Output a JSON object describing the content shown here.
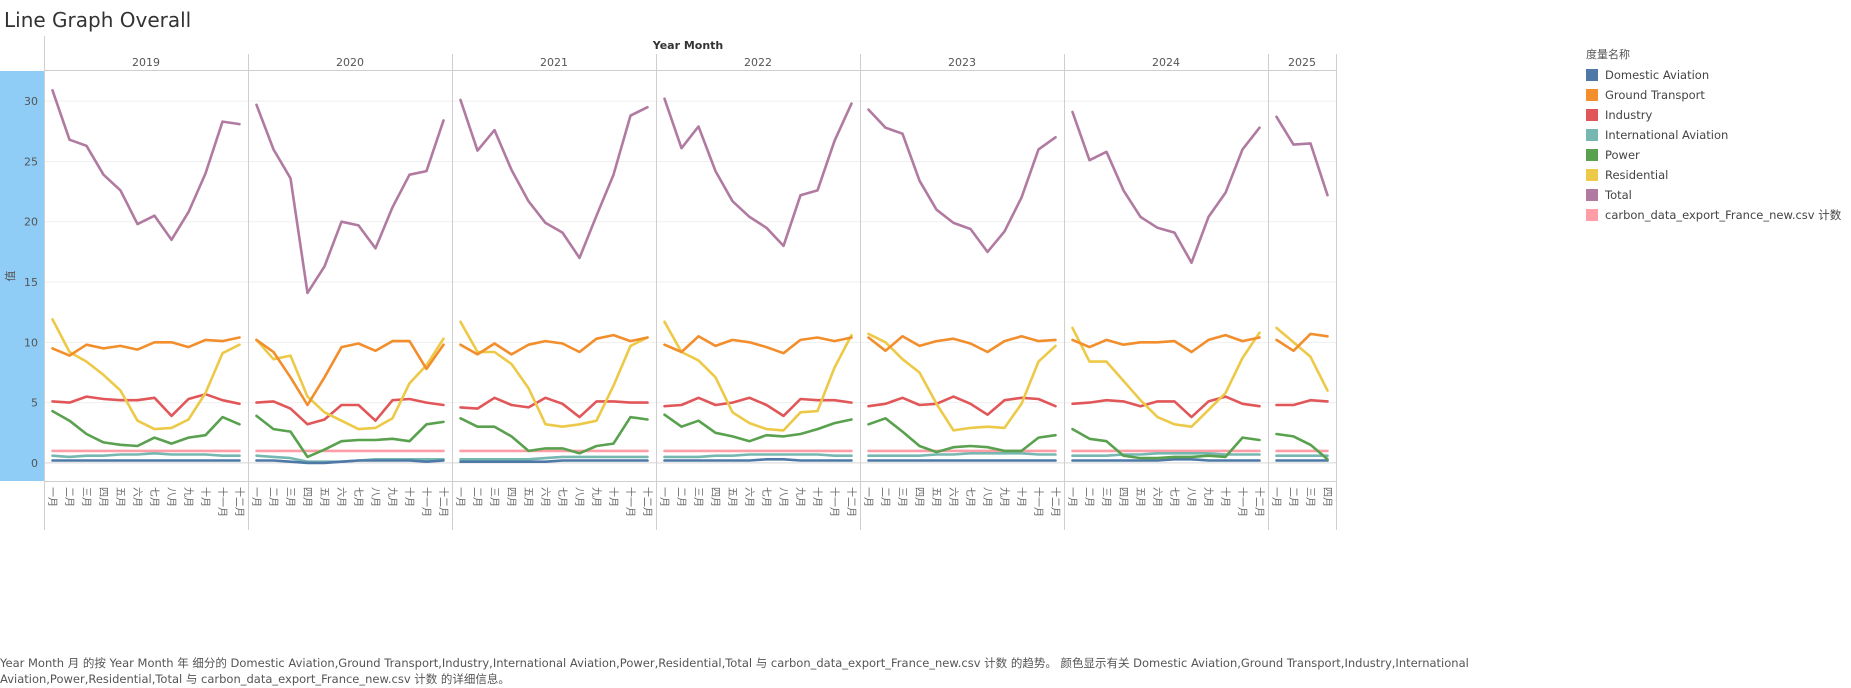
{
  "page": {
    "title": "Line Graph Overall",
    "caption": "Year Month 月 的按 Year Month 年 细分的 Domestic Aviation,Ground Transport,Industry,International Aviation,Power,Residential,Total 与 carbon_data_export_France_new.csv 计数 的趋势。 颜色显示有关 Domestic Aviation,Ground Transport,Industry,International Aviation,Power,Residential,Total 与 carbon_data_export_France_new.csv 计数 的详细信息。"
  },
  "legend": {
    "title": "度量名称",
    "items": [
      {
        "label": "Domestic Aviation",
        "color": "#4e79a7"
      },
      {
        "label": "Ground Transport",
        "color": "#f28e2b"
      },
      {
        "label": "Industry",
        "color": "#e15759"
      },
      {
        "label": "International Aviation",
        "color": "#76b7b2"
      },
      {
        "label": "Power",
        "color": "#59a14f"
      },
      {
        "label": "Residential",
        "color": "#edc948"
      },
      {
        "label": "Total",
        "color": "#b07aa1"
      },
      {
        "label": "carbon_data_export_France_new.csv 计数",
        "color": "#ff9da7"
      }
    ]
  },
  "chart_data": {
    "type": "line",
    "title": "Line Graph Overall",
    "xlabel": "Year Month",
    "ylabel": "值",
    "ylim": [
      -1.5,
      32.5
    ],
    "yticks": [
      0,
      5,
      10,
      15,
      20,
      25,
      30
    ],
    "grid": true,
    "legend_position": "right",
    "month_labels": [
      "一月",
      "二月",
      "三月",
      "四月",
      "五月",
      "六月",
      "七月",
      "八月",
      "九月",
      "十月",
      "十一月",
      "十二月"
    ],
    "panels": [
      {
        "year": "2019",
        "months": 12,
        "series": {
          "Domestic Aviation": [
            0.2,
            0.2,
            0.2,
            0.2,
            0.2,
            0.2,
            0.2,
            0.2,
            0.2,
            0.2,
            0.2,
            0.2
          ],
          "Ground Transport": [
            9.5,
            8.9,
            9.8,
            9.5,
            9.7,
            9.4,
            10.0,
            10.0,
            9.6,
            10.2,
            10.1,
            10.4
          ],
          "Industry": [
            5.1,
            5.0,
            5.5,
            5.3,
            5.2,
            5.2,
            5.4,
            3.9,
            5.3,
            5.7,
            5.2,
            4.9
          ],
          "International Aviation": [
            0.6,
            0.5,
            0.6,
            0.6,
            0.7,
            0.7,
            0.8,
            0.7,
            0.7,
            0.7,
            0.6,
            0.6
          ],
          "Power": [
            4.3,
            3.5,
            2.4,
            1.7,
            1.5,
            1.4,
            2.1,
            1.6,
            2.1,
            2.3,
            3.8,
            3.2
          ],
          "Residential": [
            11.9,
            9.2,
            8.4,
            7.3,
            6.0,
            3.5,
            2.8,
            2.9,
            3.6,
            5.8,
            9.1,
            9.8
          ],
          "Total": [
            30.9,
            26.8,
            26.3,
            23.9,
            22.6,
            19.8,
            20.5,
            18.5,
            20.8,
            24.0,
            28.3,
            28.1
          ],
          "carbon_data_export_France_new.csv 计数": [
            1,
            1,
            1,
            1,
            1,
            1,
            1,
            1,
            1,
            1,
            1,
            1
          ]
        }
      },
      {
        "year": "2020",
        "months": 12,
        "series": {
          "Domestic Aviation": [
            0.2,
            0.2,
            0.1,
            0.0,
            0.0,
            0.1,
            0.2,
            0.2,
            0.2,
            0.2,
            0.1,
            0.2
          ],
          "Ground Transport": [
            10.2,
            9.2,
            7.1,
            4.8,
            7.1,
            9.6,
            9.9,
            9.3,
            10.1,
            10.1,
            7.8,
            9.8
          ],
          "Industry": [
            5.0,
            5.1,
            4.5,
            3.2,
            3.6,
            4.8,
            4.8,
            3.5,
            5.2,
            5.3,
            5.0,
            4.8
          ],
          "International Aviation": [
            0.6,
            0.5,
            0.4,
            0.1,
            0.1,
            0.1,
            0.2,
            0.3,
            0.3,
            0.3,
            0.3,
            0.3
          ],
          "Power": [
            3.9,
            2.8,
            2.6,
            0.5,
            1.1,
            1.8,
            1.9,
            1.9,
            2.0,
            1.8,
            3.2,
            3.4
          ],
          "Residential": [
            10.2,
            8.6,
            8.9,
            5.5,
            4.2,
            3.5,
            2.8,
            2.9,
            3.7,
            6.6,
            8.1,
            10.3
          ],
          "Total": [
            29.7,
            26.0,
            23.6,
            14.1,
            16.3,
            20.0,
            19.7,
            17.8,
            21.2,
            23.9,
            24.2,
            28.4
          ],
          "carbon_data_export_France_new.csv 计数": [
            1,
            1,
            1,
            1,
            1,
            1,
            1,
            1,
            1,
            1,
            1,
            1
          ]
        }
      },
      {
        "year": "2021",
        "months": 12,
        "series": {
          "Domestic Aviation": [
            0.1,
            0.1,
            0.1,
            0.1,
            0.1,
            0.1,
            0.2,
            0.2,
            0.2,
            0.2,
            0.2,
            0.2
          ],
          "Ground Transport": [
            9.8,
            9.0,
            9.9,
            9.0,
            9.8,
            10.1,
            9.9,
            9.2,
            10.3,
            10.6,
            10.1,
            10.4
          ],
          "Industry": [
            4.6,
            4.5,
            5.4,
            4.8,
            4.6,
            5.4,
            4.9,
            3.8,
            5.1,
            5.1,
            5.0,
            5.0
          ],
          "International Aviation": [
            0.3,
            0.3,
            0.3,
            0.3,
            0.3,
            0.4,
            0.5,
            0.5,
            0.5,
            0.5,
            0.5,
            0.5
          ],
          "Power": [
            3.7,
            3.0,
            3.0,
            2.2,
            1.0,
            1.2,
            1.2,
            0.8,
            1.4,
            1.6,
            3.8,
            3.6
          ],
          "Residential": [
            11.7,
            9.2,
            9.2,
            8.2,
            6.2,
            3.2,
            3.0,
            3.2,
            3.5,
            6.4,
            9.7,
            10.4
          ],
          "Total": [
            30.1,
            25.9,
            27.6,
            24.3,
            21.7,
            19.9,
            19.1,
            17.0,
            20.5,
            23.9,
            28.8,
            29.5
          ],
          "carbon_data_export_France_new.csv 计数": [
            1,
            1,
            1,
            1,
            1,
            1,
            1,
            1,
            1,
            1,
            1,
            1
          ]
        }
      },
      {
        "year": "2022",
        "months": 12,
        "series": {
          "Domestic Aviation": [
            0.2,
            0.2,
            0.2,
            0.2,
            0.2,
            0.2,
            0.3,
            0.3,
            0.2,
            0.2,
            0.2,
            0.2
          ],
          "Ground Transport": [
            9.8,
            9.2,
            10.5,
            9.7,
            10.2,
            10.0,
            9.6,
            9.1,
            10.2,
            10.4,
            10.1,
            10.4
          ],
          "Industry": [
            4.7,
            4.8,
            5.4,
            4.8,
            5.0,
            5.4,
            4.8,
            3.9,
            5.3,
            5.2,
            5.2,
            5.0
          ],
          "International Aviation": [
            0.5,
            0.5,
            0.5,
            0.6,
            0.6,
            0.7,
            0.7,
            0.7,
            0.7,
            0.7,
            0.6,
            0.6
          ],
          "Power": [
            4.0,
            3.0,
            3.5,
            2.5,
            2.2,
            1.8,
            2.3,
            2.2,
            2.4,
            2.8,
            3.3,
            3.6
          ],
          "Residential": [
            11.7,
            9.2,
            8.5,
            7.1,
            4.2,
            3.3,
            2.8,
            2.7,
            4.2,
            4.3,
            7.9,
            10.6
          ],
          "Total": [
            30.2,
            26.1,
            27.9,
            24.2,
            21.7,
            20.4,
            19.5,
            18.0,
            22.2,
            22.6,
            26.7,
            29.8
          ],
          "carbon_data_export_France_new.csv 计数": [
            1,
            1,
            1,
            1,
            1,
            1,
            1,
            1,
            1,
            1,
            1,
            1
          ]
        }
      },
      {
        "year": "2023",
        "months": 12,
        "series": {
          "Domestic Aviation": [
            0.2,
            0.2,
            0.2,
            0.2,
            0.2,
            0.2,
            0.2,
            0.2,
            0.2,
            0.2,
            0.2,
            0.2
          ],
          "Ground Transport": [
            10.4,
            9.3,
            10.5,
            9.7,
            10.1,
            10.3,
            9.9,
            9.2,
            10.1,
            10.5,
            10.1,
            10.2
          ],
          "Industry": [
            4.7,
            4.9,
            5.4,
            4.8,
            4.9,
            5.5,
            4.9,
            4.0,
            5.2,
            5.4,
            5.3,
            4.7
          ],
          "International Aviation": [
            0.6,
            0.6,
            0.6,
            0.6,
            0.7,
            0.7,
            0.8,
            0.8,
            0.8,
            0.8,
            0.7,
            0.7
          ],
          "Power": [
            3.2,
            3.7,
            2.6,
            1.4,
            0.9,
            1.3,
            1.4,
            1.3,
            1.0,
            1.0,
            2.1,
            2.3
          ],
          "Residential": [
            10.7,
            10.0,
            8.6,
            7.5,
            4.9,
            2.7,
            2.9,
            3.0,
            2.9,
            4.9,
            8.4,
            9.7
          ],
          "Total": [
            29.3,
            27.8,
            27.3,
            23.4,
            21.0,
            19.9,
            19.4,
            17.5,
            19.2,
            22.0,
            26.0,
            27.0
          ],
          "carbon_data_export_France_new.csv 计数": [
            1,
            1,
            1,
            1,
            1,
            1,
            1,
            1,
            1,
            1,
            1,
            1
          ]
        }
      },
      {
        "year": "2024",
        "months": 12,
        "series": {
          "Domestic Aviation": [
            0.2,
            0.2,
            0.2,
            0.2,
            0.2,
            0.2,
            0.3,
            0.3,
            0.2,
            0.2,
            0.2,
            0.2
          ],
          "Ground Transport": [
            10.2,
            9.6,
            10.2,
            9.8,
            10.0,
            10.0,
            10.1,
            9.2,
            10.2,
            10.6,
            10.1,
            10.4
          ],
          "Industry": [
            4.9,
            5.0,
            5.2,
            5.1,
            4.7,
            5.1,
            5.1,
            3.8,
            5.1,
            5.5,
            4.9,
            4.7
          ],
          "International Aviation": [
            0.6,
            0.6,
            0.6,
            0.7,
            0.7,
            0.8,
            0.8,
            0.8,
            0.8,
            0.7,
            0.7,
            0.7
          ],
          "Power": [
            2.8,
            2.0,
            1.8,
            0.6,
            0.4,
            0.4,
            0.5,
            0.5,
            0.6,
            0.5,
            2.1,
            1.9
          ],
          "Residential": [
            11.2,
            8.4,
            8.4,
            6.8,
            5.2,
            3.8,
            3.2,
            3.0,
            4.4,
            5.8,
            8.7,
            10.8
          ],
          "Total": [
            29.1,
            25.1,
            25.8,
            22.6,
            20.4,
            19.5,
            19.1,
            16.6,
            20.4,
            22.4,
            26.0,
            27.8
          ],
          "carbon_data_export_France_new.csv 计数": [
            1,
            1,
            1,
            1,
            1,
            1,
            1,
            1,
            1,
            1,
            1,
            1
          ]
        }
      },
      {
        "year": "2025",
        "months": 4,
        "series": {
          "Domestic Aviation": [
            0.2,
            0.2,
            0.2,
            0.2
          ],
          "Ground Transport": [
            10.2,
            9.3,
            10.7,
            10.5
          ],
          "Industry": [
            4.8,
            4.8,
            5.2,
            5.1
          ],
          "International Aviation": [
            0.6,
            0.6,
            0.6,
            0.6
          ],
          "Power": [
            2.4,
            2.2,
            1.5,
            0.3
          ],
          "Residential": [
            11.2,
            10.0,
            8.8,
            6.0
          ],
          "Total": [
            28.7,
            26.4,
            26.5,
            22.2
          ],
          "carbon_data_export_France_new.csv 计数": [
            1,
            1,
            1,
            1
          ]
        }
      }
    ]
  }
}
